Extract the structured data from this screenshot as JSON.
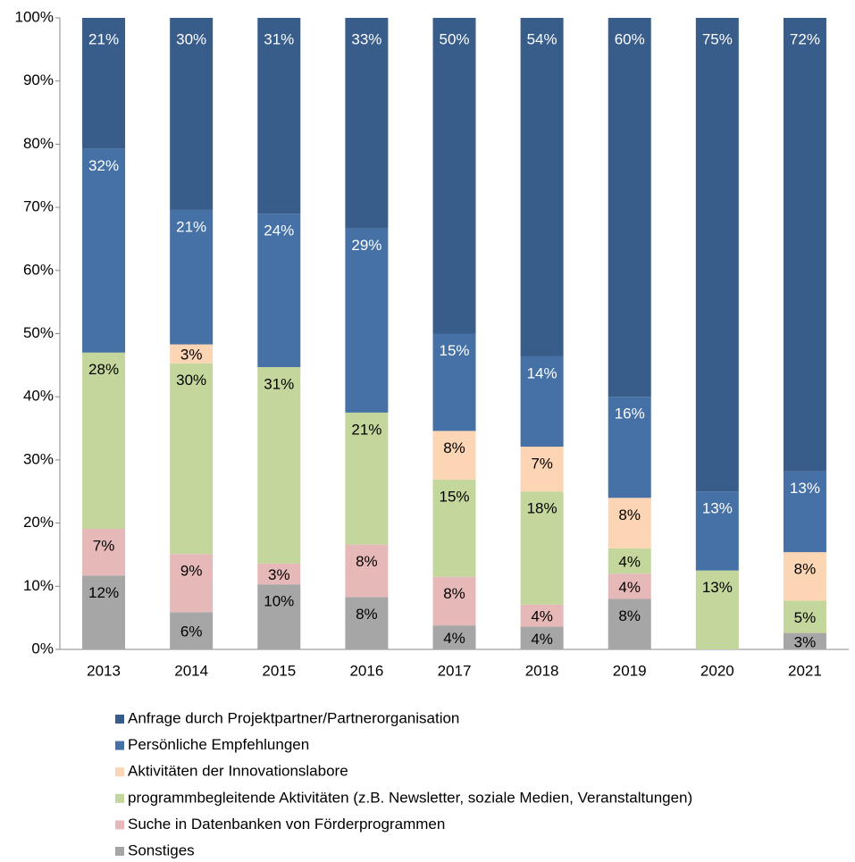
{
  "chart_data": {
    "type": "stacked_bar",
    "categories": [
      "2013",
      "2014",
      "2015",
      "2016",
      "2017",
      "2018",
      "2019",
      "2020",
      "2021"
    ],
    "series": [
      {
        "name": "Anfrage durch Projektpartner/Partnerorganisation",
        "color": "#385d8a",
        "label_color": "#ffffff",
        "values": [
          20.7,
          30.4,
          31.0,
          33.3,
          50.0,
          53.6,
          60.0,
          75.0,
          71.8
        ],
        "value_labels": [
          "21%",
          "30%",
          "31%",
          "33%",
          "50%",
          "54%",
          "60%",
          "75%",
          "72%"
        ]
      },
      {
        "name": "Persönliche Empfehlungen",
        "color": "#4571a6",
        "label_color": "#ffffff",
        "values": [
          32.3,
          21.3,
          24.3,
          29.2,
          15.4,
          14.3,
          16.0,
          12.5,
          12.8
        ],
        "value_labels": [
          "32%",
          "21%",
          "24%",
          "29%",
          "15%",
          "14%",
          "16%",
          "13%",
          "13%"
        ]
      },
      {
        "name": "Aktivitäten der Innovationslabore",
        "color": "#fcd5b4",
        "label_color": "#000000",
        "values": [
          null,
          3.0,
          null,
          null,
          7.7,
          7.1,
          8.0,
          null,
          7.7
        ],
        "value_labels": [
          null,
          "3%",
          null,
          null,
          "8%",
          "7%",
          "8%",
          null,
          "8%"
        ]
      },
      {
        "name": "programmbegleitende Aktivitäten (z.B. Newsletter, soziale Medien, Veranstaltungen)",
        "color": "#c3d69b",
        "label_color": "#000000",
        "values": [
          27.9,
          30.2,
          31.1,
          20.9,
          15.4,
          17.9,
          4.0,
          12.5,
          5.1
        ],
        "value_labels": [
          "28%",
          "30%",
          "31%",
          "21%",
          "15%",
          "18%",
          "4%",
          "13%",
          "5%"
        ]
      },
      {
        "name": "Suche in Datenbanken von Förderprogrammen",
        "color": "#e6b9b8",
        "label_color": "#000000",
        "values": [
          7.4,
          9.2,
          3.3,
          8.3,
          7.7,
          3.5,
          4.0,
          null,
          null
        ],
        "value_labels": [
          "7%",
          "9%",
          "3%",
          "8%",
          "8%",
          "4%",
          "4%",
          null,
          null
        ]
      },
      {
        "name": "Sonstiges",
        "color": "#a6a6a6",
        "label_color": "#000000",
        "values": [
          11.7,
          5.9,
          10.3,
          8.3,
          3.8,
          3.6,
          8.0,
          null,
          2.6
        ],
        "value_labels": [
          "12%",
          "6%",
          "10%",
          "8%",
          "4%",
          "4%",
          "8%",
          null,
          "3%"
        ]
      }
    ],
    "ylim": [
      0,
      100
    ],
    "yticks": [
      {
        "value": 0,
        "label": "0%"
      },
      {
        "value": 10,
        "label": "10%"
      },
      {
        "value": 20,
        "label": "20%"
      },
      {
        "value": 30,
        "label": "30%"
      },
      {
        "value": 40,
        "label": "40%"
      },
      {
        "value": 50,
        "label": "50%"
      },
      {
        "value": 60,
        "label": "60%"
      },
      {
        "value": 70,
        "label": "70%"
      },
      {
        "value": 80,
        "label": "80%"
      },
      {
        "value": 90,
        "label": "90%"
      },
      {
        "value": 100,
        "label": "100%"
      }
    ],
    "grid": false
  }
}
